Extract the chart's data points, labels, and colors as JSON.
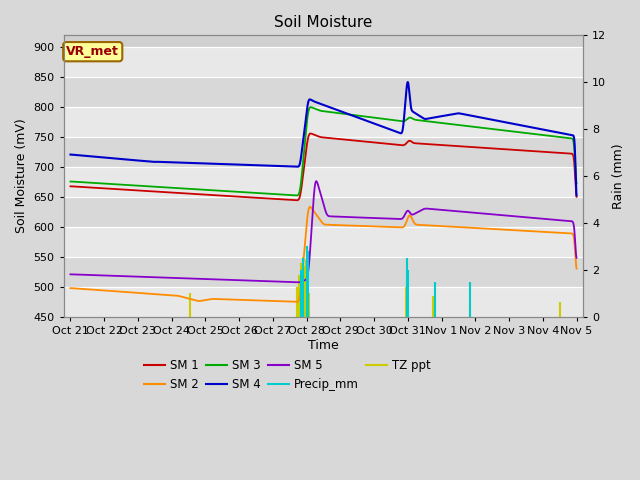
{
  "title": "Soil Moisture",
  "xlabel": "Time",
  "ylabel_left": "Soil Moisture (mV)",
  "ylabel_right": "Rain (mm)",
  "ylim_left": [
    450,
    920
  ],
  "ylim_right": [
    0,
    12
  ],
  "fig_bg_color": "#d8d8d8",
  "plot_bg_color": "#d0d0d0",
  "vr_met_label": "VR_met",
  "x_tick_labels": [
    "Oct 21",
    "Oct 22",
    "Oct 23",
    "Oct 24",
    "Oct 25",
    "Oct 26",
    "Oct 27",
    "Oct 28",
    "Oct 29",
    "Oct 30",
    "Oct 31",
    "Nov 1",
    "Nov 2",
    "Nov 3",
    "Nov 4",
    "Nov 5"
  ],
  "sm1_color": "#cc0000",
  "sm2_color": "#ff8c00",
  "sm3_color": "#00aa00",
  "sm4_color": "#0000cc",
  "sm5_color": "#8800cc",
  "precip_color": "#00cccc",
  "tzppt_color": "#cccc00",
  "yticks_left": [
    450,
    500,
    550,
    600,
    650,
    700,
    750,
    800,
    850,
    900
  ],
  "yticks_right": [
    0,
    2,
    4,
    6,
    8,
    10,
    12
  ],
  "band_colors": [
    "#e8e8e8",
    "#d8d8d8"
  ]
}
